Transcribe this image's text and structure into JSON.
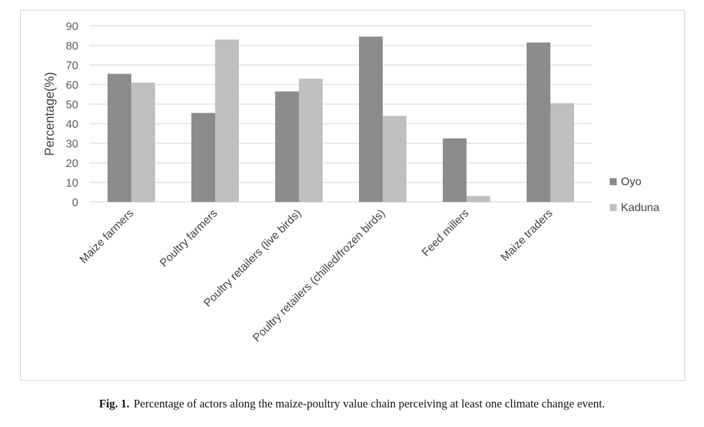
{
  "chart_data": {
    "type": "bar",
    "title": "",
    "xlabel": "",
    "ylabel": "Percentage(%)",
    "categories": [
      "Maize farmers",
      "Poultry farmers",
      "Poultry retailers (live birds)",
      "Poultry retailers (chilled/frozen birds)",
      "Feed millers",
      "Maize traders"
    ],
    "series": [
      {
        "name": "Oyo",
        "color": "#8c8c8c",
        "values": [
          65.5,
          45.5,
          56.5,
          84.5,
          32.5,
          81.5
        ]
      },
      {
        "name": "Kaduna",
        "color": "#bfbfbf",
        "values": [
          61,
          83,
          63,
          44,
          3,
          50.5
        ]
      }
    ],
    "ylim": [
      0,
      90
    ],
    "yticks": [
      0,
      10,
      20,
      30,
      40,
      50,
      60,
      70,
      80,
      90
    ],
    "grid": true,
    "legend_position": "right"
  },
  "caption": {
    "label": "Fig. 1.",
    "text": "Percentage of actors along the maize-poultry value chain perceiving at least one climate change event."
  }
}
